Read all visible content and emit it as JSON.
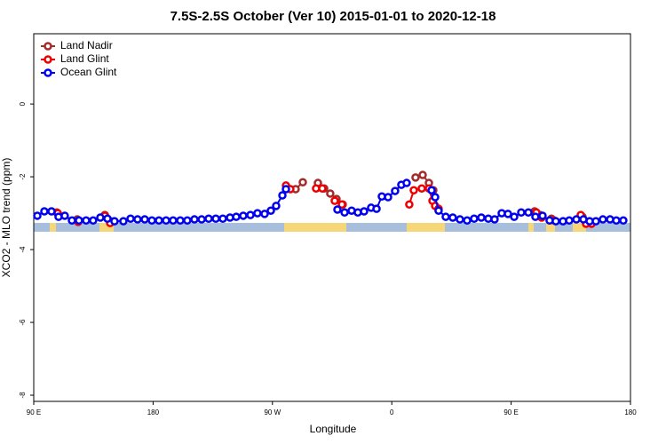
{
  "chart_data": {
    "type": "scatter",
    "title": "7.5S-2.5S October (Ver 10)   2015-01-01 to 2020-12-18",
    "xlabel": "Longitude",
    "ylabel": "XCO2 - MLO trend (ppm)",
    "xlim": [
      90,
      540
    ],
    "ylim": [
      -8.17,
      1.93
    ],
    "xticks": [
      {
        "value": 90,
        "label": "90 E"
      },
      180,
      {
        "value": 270,
        "label": "90 W"
      },
      {
        "value": 360,
        "label": "0"
      },
      {
        "value": 450,
        "label": "90 E"
      },
      {
        "value": 540,
        "label": "180"
      }
    ],
    "yticks": [
      0,
      -2,
      -4,
      -6,
      -8
    ],
    "legend": "top-left",
    "series": [
      {
        "name": "Land Nadir",
        "color": "#a52a2a",
        "x": [
          107.4,
          122.8,
          143.6,
          147.6,
          287.5,
          292.9,
          304.3,
          309,
          313.6,
          318.3,
          323,
          377.9,
          383.3,
          388,
          391.3,
          467.7,
          471.7,
          480.4,
          503.8,
          507.2
        ],
        "values": [
          -2.98,
          -3.17,
          -3.05,
          -3.22,
          -2.34,
          -2.15,
          -2.17,
          -2.32,
          -2.46,
          -2.61,
          -2.76,
          -2.02,
          -1.95,
          -2.17,
          -2.37,
          -2.95,
          -3.05,
          -3.15,
          -3.1,
          -3.24
        ]
      },
      {
        "name": "Land Glint",
        "color": "#ee0000",
        "x": [
          108.1,
          123.5,
          143.6,
          147.6,
          280.2,
          283.5,
          302.9,
          307.6,
          317,
          322.4,
          373.2,
          376.6,
          382.6,
          388,
          390.7,
          392.7,
          395.3,
          469,
          473,
          482.4,
          502.5,
          506.5,
          510.6
        ],
        "values": [
          -3.0,
          -3.24,
          -3.07,
          -3.27,
          -2.24,
          -2.34,
          -2.32,
          -2.32,
          -2.66,
          -2.76,
          -2.76,
          -2.37,
          -2.32,
          -2.32,
          -2.66,
          -2.8,
          -2.88,
          -2.98,
          -3.12,
          -3.2,
          -3.05,
          -3.29,
          -3.29
        ]
      },
      {
        "name": "Ocean Glint",
        "color": "#0000ee",
        "x": [
          92.7,
          98.0,
          103.4,
          108.7,
          113.4,
          118.8,
          124.1,
          129.5,
          134.8,
          140.2,
          145.6,
          150.9,
          157.6,
          163,
          168.3,
          173.7,
          179.1,
          184.4,
          189.8,
          195.1,
          200.5,
          205.8,
          211.2,
          216.6,
          221.9,
          227.3,
          232.6,
          238,
          242.7,
          248,
          253.4,
          258.7,
          264.1,
          268.8,
          272.8,
          277.5,
          280.2,
          319,
          324.4,
          329.7,
          334.4,
          339.1,
          344.4,
          348.5,
          352.5,
          357.2,
          362.5,
          367.2,
          371.2,
          390,
          392.7,
          395.3,
          400.7,
          406,
          411.4,
          416.8,
          422.1,
          427.5,
          432.8,
          437.5,
          442.9,
          447.6,
          452.3,
          457.6,
          463,
          468.3,
          473.7,
          479,
          483.7,
          489.1,
          493.8,
          499.2,
          504.5,
          509.2,
          513.9,
          519.2,
          524.6,
          529.3,
          534.6
        ],
        "values": [
          -3.07,
          -2.95,
          -2.95,
          -3.1,
          -3.07,
          -3.2,
          -3.2,
          -3.2,
          -3.2,
          -3.12,
          -3.15,
          -3.22,
          -3.22,
          -3.15,
          -3.17,
          -3.17,
          -3.2,
          -3.2,
          -3.2,
          -3.2,
          -3.2,
          -3.2,
          -3.17,
          -3.17,
          -3.15,
          -3.15,
          -3.15,
          -3.12,
          -3.1,
          -3.07,
          -3.05,
          -3.0,
          -3.02,
          -2.93,
          -2.8,
          -2.51,
          -2.34,
          -2.9,
          -2.98,
          -2.93,
          -2.98,
          -2.95,
          -2.85,
          -2.88,
          -2.54,
          -2.56,
          -2.39,
          -2.22,
          -2.17,
          -2.37,
          -2.56,
          -2.93,
          -3.1,
          -3.12,
          -3.17,
          -3.2,
          -3.15,
          -3.12,
          -3.15,
          -3.17,
          -3.0,
          -3.02,
          -3.1,
          -2.98,
          -2.98,
          -3.1,
          -3.07,
          -3.2,
          -3.22,
          -3.22,
          -3.2,
          -3.17,
          -3.17,
          -3.22,
          -3.22,
          -3.17,
          -3.17,
          -3.2,
          -3.2
        ]
      }
    ]
  }
}
